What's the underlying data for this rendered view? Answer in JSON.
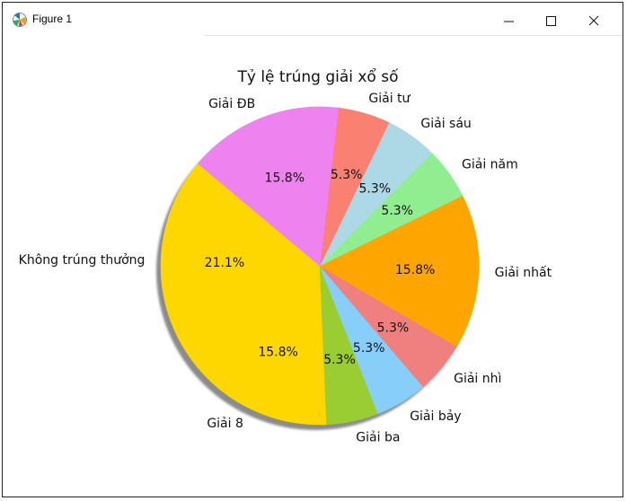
{
  "window": {
    "title": "Figure 1",
    "icons": {
      "app": "matplotlib-figure-icon",
      "minimize": "minimize-icon",
      "maximize": "maximize-icon",
      "close": "close-icon"
    }
  },
  "chart_data": {
    "type": "pie",
    "title": "Tỷ lệ trúng giải xổ số",
    "shadow": true,
    "legend": "none",
    "slices": [
      {
        "label": "Không trúng thưởng",
        "value": 21.1,
        "pct_label": "21.1%",
        "color": "#ffd700"
      },
      {
        "label": "Giải 8",
        "value": 15.8,
        "pct_label": "15.8%",
        "color": "#ffd700"
      },
      {
        "label": "Giải ba",
        "value": 5.3,
        "pct_label": "5.3%",
        "color": "#9acd32"
      },
      {
        "label": "Giải bảy",
        "value": 5.3,
        "pct_label": "5.3%",
        "color": "#87cefa"
      },
      {
        "label": "Giải nhì",
        "value": 5.3,
        "pct_label": "5.3%",
        "color": "#f08080"
      },
      {
        "label": "Giải nhất",
        "value": 15.8,
        "pct_label": "15.8%",
        "color": "#ffa500"
      },
      {
        "label": "Giải năm",
        "value": 5.3,
        "pct_label": "5.3%",
        "color": "#90ee90"
      },
      {
        "label": "Giải sáu",
        "value": 5.3,
        "pct_label": "5.3%",
        "color": "#add8e6"
      },
      {
        "label": "Giải tư",
        "value": 5.3,
        "pct_label": "5.3%",
        "color": "#fa8072"
      },
      {
        "label": "Giải ĐB",
        "value": 15.8,
        "pct_label": "15.8%",
        "color": "#ee82ee"
      }
    ]
  }
}
